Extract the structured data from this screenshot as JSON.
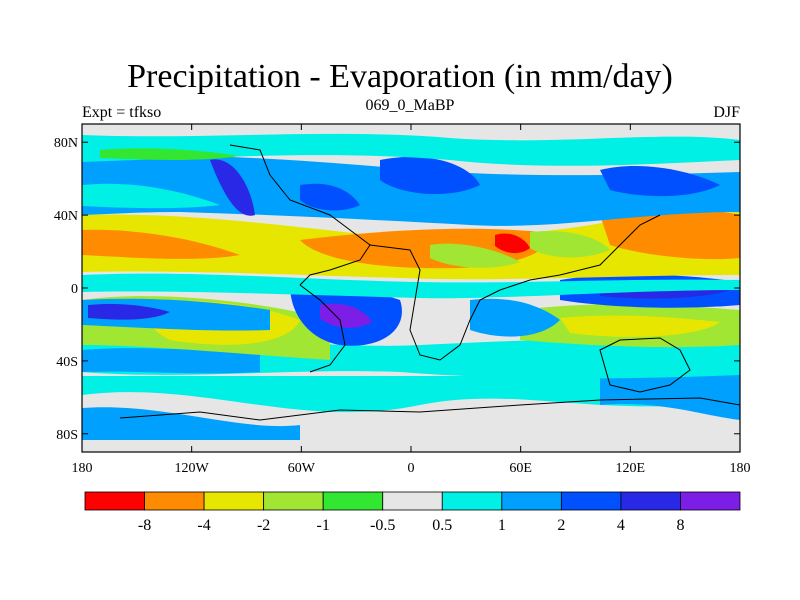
{
  "header": {
    "title": "Precipitation - Evaporation (in mm/day)",
    "left_label": "Expt = tfkso",
    "center_label": "069_0_MaBP",
    "right_label": "DJF"
  },
  "chart_data": {
    "type": "heatmap",
    "title": "Precipitation - Evaporation (in mm/day)",
    "xlabel": "",
    "ylabel": "",
    "xlim": [
      -180,
      180
    ],
    "ylim": [
      -90,
      90
    ],
    "x_ticks": [
      {
        "value": -180,
        "label": "180"
      },
      {
        "value": -120,
        "label": "120W"
      },
      {
        "value": -60,
        "label": "60W"
      },
      {
        "value": 0,
        "label": "0"
      },
      {
        "value": 60,
        "label": "60E"
      },
      {
        "value": 120,
        "label": "120E"
      },
      {
        "value": 180,
        "label": "180"
      }
    ],
    "y_ticks": [
      {
        "value": 80,
        "label": "80N"
      },
      {
        "value": 40,
        "label": "40N"
      },
      {
        "value": 0,
        "label": "0"
      },
      {
        "value": -40,
        "label": "40S"
      },
      {
        "value": -80,
        "label": "80S"
      }
    ],
    "colorbar": {
      "colors": [
        "#ff0000",
        "#ff8c00",
        "#e6e600",
        "#a0e632",
        "#32e632",
        "#e6e6e6",
        "#00f0e6",
        "#00a0ff",
        "#0050ff",
        "#2828e6",
        "#7d1ee6"
      ],
      "boundaries": [
        "-8",
        "-4",
        "-2",
        "-1",
        "-0.5",
        "0.5",
        "1",
        "2",
        "4",
        "8"
      ]
    },
    "grid": false
  }
}
